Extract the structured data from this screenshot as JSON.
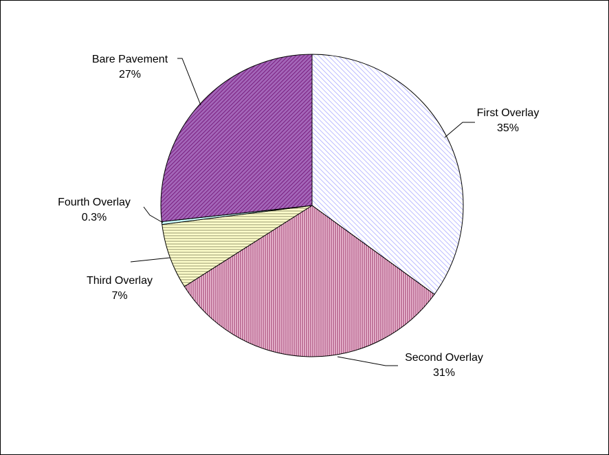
{
  "chart_data": {
    "type": "pie",
    "title": "",
    "start_angle_deg": 0,
    "direction": "clockwise",
    "slices": [
      {
        "label": "First Overlay",
        "percent_label": "35%",
        "value": 35.0,
        "color": "#9999FF",
        "pattern": "diagonal"
      },
      {
        "label": "Second Overlay",
        "percent_label": "31%",
        "value": 31.0,
        "color": "#993366",
        "pattern": "vertical"
      },
      {
        "label": "Third Overlay",
        "percent_label": "7%",
        "value": 7.0,
        "color": "#FFFFCC",
        "pattern": "horizontal"
      },
      {
        "label": "Fourth Overlay",
        "percent_label": "0.3%",
        "value": 0.3,
        "color": "#CCFFFF",
        "pattern": "solid"
      },
      {
        "label": "Bare Pavement",
        "percent_label": "27%",
        "value": 26.7,
        "color": "#660066",
        "pattern": "crosshatch"
      }
    ]
  }
}
